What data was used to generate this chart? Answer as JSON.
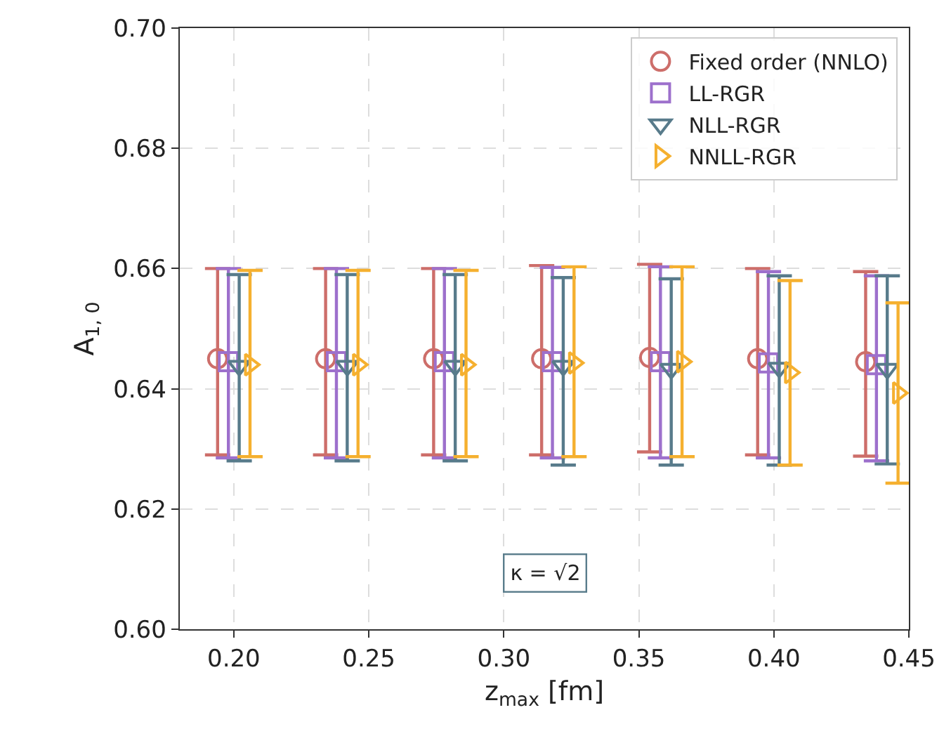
{
  "chart_data": {
    "type": "scatter",
    "xlabel": "z$_{max}$ [fm]",
    "ylabel": "A$_{1, 0}$",
    "xlim": [
      0.18,
      0.45
    ],
    "xticks": [
      {
        "value": 0.2,
        "label": "0.20"
      },
      0.25,
      {
        "value": 0.3,
        "label": "0.30"
      },
      0.35,
      {
        "value": 0.4,
        "label": "0.40"
      },
      0.45
    ],
    "ylim": [
      0.6,
      0.7
    ],
    "yticks": [
      {
        "value": 0.6,
        "label": "0.60"
      },
      0.62,
      0.64,
      0.66,
      0.68,
      {
        "value": 0.7,
        "label": "0.70"
      }
    ],
    "grid": true,
    "legend": "top right",
    "annotations": [
      "κ = √2"
    ],
    "series": [
      {
        "name": "Fixed order (NNLO)",
        "color": "#cd6e6a",
        "marker": "circle",
        "x": [
          0.194,
          0.234,
          0.274,
          0.314,
          0.354,
          0.394,
          0.434
        ],
        "values": [
          0.645,
          0.645,
          0.645,
          0.645,
          0.6452,
          0.645,
          0.6445
        ],
        "errors": [
          [
            0.629,
            0.66
          ],
          [
            0.629,
            0.66
          ],
          [
            0.629,
            0.66
          ],
          [
            0.629,
            0.6605
          ],
          [
            0.6295,
            0.6607
          ],
          [
            0.629,
            0.66
          ],
          [
            0.6288,
            0.6595
          ]
        ]
      },
      {
        "name": "LL-RGR",
        "color": "#9d70cc",
        "marker": "square",
        "x": [
          0.198,
          0.238,
          0.278,
          0.318,
          0.358,
          0.398,
          0.438
        ],
        "values": [
          0.6445,
          0.6445,
          0.6445,
          0.6445,
          0.6445,
          0.6443,
          0.644
        ],
        "errors": [
          [
            0.6285,
            0.66
          ],
          [
            0.6285,
            0.66
          ],
          [
            0.6285,
            0.66
          ],
          [
            0.6285,
            0.6602
          ],
          [
            0.6285,
            0.6603
          ],
          [
            0.6285,
            0.6595
          ],
          [
            0.628,
            0.6588
          ]
        ]
      },
      {
        "name": "NLL-RGR",
        "color": "#587b8b",
        "marker": "triangle-down",
        "x": [
          0.202,
          0.242,
          0.282,
          0.322,
          0.362,
          0.402,
          0.442
        ],
        "values": [
          0.6438,
          0.6438,
          0.6438,
          0.6438,
          0.6433,
          0.6435,
          0.6433
        ],
        "errors": [
          [
            0.628,
            0.659
          ],
          [
            0.628,
            0.659
          ],
          [
            0.628,
            0.659
          ],
          [
            0.6273,
            0.6585
          ],
          [
            0.6273,
            0.6583
          ],
          [
            0.6273,
            0.6588
          ],
          [
            0.6275,
            0.6588
          ]
        ]
      },
      {
        "name": "NNLL-RGR",
        "color": "#f5b02f",
        "marker": "triangle-right",
        "x": [
          0.206,
          0.246,
          0.286,
          0.326,
          0.366,
          0.406,
          0.446
        ],
        "values": [
          0.644,
          0.644,
          0.644,
          0.6443,
          0.6445,
          0.6427,
          0.6393
        ],
        "errors": [
          [
            0.6287,
            0.6597
          ],
          [
            0.6287,
            0.6597
          ],
          [
            0.6287,
            0.6597
          ],
          [
            0.6287,
            0.6603
          ],
          [
            0.6287,
            0.6603
          ],
          [
            0.6273,
            0.658
          ],
          [
            0.6243,
            0.6543
          ]
        ]
      }
    ]
  }
}
